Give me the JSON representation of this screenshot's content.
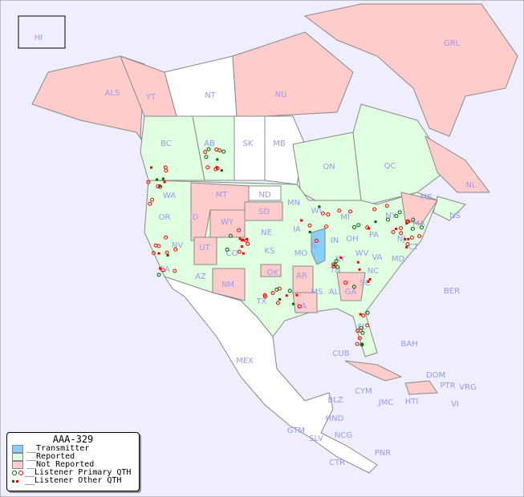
{
  "colors": {
    "background": "#eeeeff",
    "transmitter": "#87cefa",
    "reported": "#e0ffe0",
    "not_reported": "#ffcccc",
    "unreported": "#ffffff",
    "primary_green": "#006600",
    "primary_red": "#ff0000",
    "label": "#9999ee"
  },
  "legend": {
    "title": "AAA-329",
    "items": [
      {
        "label": "__Transmitter"
      },
      {
        "label": "__Reported"
      },
      {
        "label": "__Not Reported"
      },
      {
        "label": "__Listener Primary QTH"
      },
      {
        "label": "__Listener Other QTH"
      }
    ]
  },
  "region_labels": [
    "HI",
    "ALS",
    "YT",
    "NT",
    "NU",
    "GRL",
    "BC",
    "AB",
    "SK",
    "MB",
    "ON",
    "QC",
    "NL",
    "NS",
    "WA",
    "OR",
    "ID",
    "MT",
    "WY",
    "ND",
    "SD",
    "MN",
    "WI",
    "MI",
    "NE",
    "IA",
    "IL",
    "IN",
    "OH",
    "PA",
    "NY",
    "ME",
    "MA",
    "CT",
    "NJ",
    "MD",
    "NV",
    "UT",
    "CO",
    "KS",
    "MO",
    "KY",
    "WV",
    "VA",
    "CA",
    "AZ",
    "NM",
    "OK",
    "AR",
    "TN",
    "NC",
    "SC",
    "TX",
    "LA",
    "MS",
    "AL",
    "GA",
    "FL",
    "MEX",
    "BAH",
    "CUB",
    "BER",
    "DOM",
    "PTR",
    "VRG",
    "CYM",
    "JMC",
    "HTI",
    "VI",
    "BLZ",
    "HND",
    "GTM",
    "SLV",
    "NCG",
    "PNR",
    "CTR"
  ]
}
